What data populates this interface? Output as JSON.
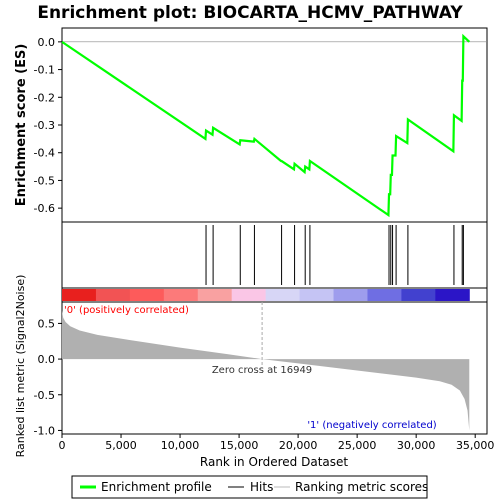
{
  "chart_data": {
    "type": "line",
    "title": "Enrichment plot: BIOCARTA_HCMV_PATHWAY",
    "xlabel": "Rank in Ordered Dataset",
    "ylabel_top": "Enrichment score (ES)",
    "ylabel_bottom": "Ranked list metric (Signal2Noise)",
    "xlim": [
      0,
      36000
    ],
    "x_ticks": [
      0,
      5000,
      10000,
      15000,
      20000,
      25000,
      30000,
      35000
    ],
    "x_tick_labels": [
      "0",
      "5,000",
      "10,000",
      "15,000",
      "20,000",
      "25,000",
      "30,000",
      "35,000"
    ],
    "es_ylim": [
      -0.65,
      0.05
    ],
    "es_y_ticks": [
      0.0,
      -0.1,
      -0.2,
      -0.3,
      -0.4,
      -0.5,
      -0.6
    ],
    "es_y_tick_labels": [
      "0.0",
      "-0.1",
      "-0.2",
      "-0.3",
      "-0.4",
      "-0.5",
      "-0.6"
    ],
    "metric_ylim": [
      -1.05,
      0.8
    ],
    "metric_y_ticks": [
      0.5,
      0.0,
      -0.5,
      -1.0
    ],
    "metric_y_tick_labels": [
      "0.5",
      "0.0",
      "-0.5",
      "-1.0"
    ],
    "n_genes": 34500,
    "zero_cross": 16949,
    "zero_cross_label": "Zero cross at 16949",
    "pos_label": "'0' (positively correlated)",
    "neg_label": "'1' (negatively correlated)",
    "hits": [
      12200,
      12800,
      15100,
      16300,
      18600,
      19700,
      20600,
      21000,
      27700,
      27850,
      28000,
      28300,
      29300,
      33200,
      33900,
      34000
    ],
    "es_curve": [
      [
        0,
        0.0
      ],
      [
        12150,
        -0.35
      ],
      [
        12200,
        -0.32
      ],
      [
        12750,
        -0.335
      ],
      [
        12800,
        -0.31
      ],
      [
        15050,
        -0.37
      ],
      [
        15100,
        -0.355
      ],
      [
        16250,
        -0.36
      ],
      [
        16300,
        -0.35
      ],
      [
        18550,
        -0.43
      ],
      [
        18600,
        -0.43
      ],
      [
        19650,
        -0.46
      ],
      [
        19700,
        -0.44
      ],
      [
        20550,
        -0.47
      ],
      [
        20600,
        -0.45
      ],
      [
        20950,
        -0.46
      ],
      [
        21000,
        -0.43
      ],
      [
        27650,
        -0.625
      ],
      [
        27700,
        -0.55
      ],
      [
        27800,
        -0.55
      ],
      [
        27850,
        -0.48
      ],
      [
        27950,
        -0.48
      ],
      [
        28000,
        -0.41
      ],
      [
        28250,
        -0.41
      ],
      [
        28300,
        -0.34
      ],
      [
        29250,
        -0.365
      ],
      [
        29300,
        -0.28
      ],
      [
        33150,
        -0.395
      ],
      [
        33200,
        -0.265
      ],
      [
        33850,
        -0.285
      ],
      [
        33900,
        -0.14
      ],
      [
        33950,
        -0.14
      ],
      [
        34000,
        0.02
      ],
      [
        34500,
        0.0
      ]
    ],
    "metric_curve": [
      [
        0,
        0.68
      ],
      [
        100,
        0.58
      ],
      [
        300,
        0.52
      ],
      [
        700,
        0.46
      ],
      [
        1500,
        0.4
      ],
      [
        3000,
        0.34
      ],
      [
        6000,
        0.26
      ],
      [
        10000,
        0.16
      ],
      [
        14000,
        0.07
      ],
      [
        16949,
        0.0
      ],
      [
        20000,
        -0.06
      ],
      [
        25000,
        -0.16
      ],
      [
        28000,
        -0.22
      ],
      [
        30000,
        -0.26
      ],
      [
        32000,
        -0.31
      ],
      [
        33000,
        -0.36
      ],
      [
        33700,
        -0.44
      ],
      [
        34100,
        -0.56
      ],
      [
        34350,
        -0.72
      ],
      [
        34500,
        -1.0
      ]
    ],
    "colorbar_colors": [
      "#e8201e",
      "#f25354",
      "#fd5b5b",
      "#fc7a7a",
      "#f9a1a1",
      "#fac6e6",
      "#d7d6f6",
      "#c5c4f4",
      "#9e9ded",
      "#6f6ee3",
      "#4241cf",
      "#2b15c7"
    ],
    "legend": [
      {
        "label": "Enrichment profile",
        "color": "#00ff00"
      },
      {
        "label": "Hits",
        "color": "#000000"
      },
      {
        "label": "Ranking metric scores",
        "color": "#bbbbbb"
      }
    ],
    "colors": {
      "es_line": "#00ff00",
      "metric_fill": "#b0b0b0",
      "pos_label": "#ff0000",
      "neg_label": "#0000cc"
    }
  }
}
